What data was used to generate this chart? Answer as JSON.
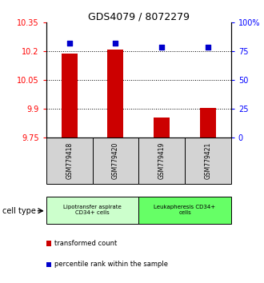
{
  "title": "GDS4079 / 8072279",
  "samples": [
    "GSM779418",
    "GSM779420",
    "GSM779419",
    "GSM779421"
  ],
  "transformed_counts": [
    10.19,
    10.21,
    9.855,
    9.905
  ],
  "percentile_ranks": [
    82,
    82,
    79,
    79
  ],
  "ylim_left": [
    9.75,
    10.35
  ],
  "ylim_right": [
    0,
    100
  ],
  "yticks_left": [
    9.75,
    9.9,
    10.05,
    10.2,
    10.35
  ],
  "ytick_labels_left": [
    "9.75",
    "9.9",
    "10.05",
    "10.2",
    "10.35"
  ],
  "yticks_right": [
    0,
    25,
    50,
    75,
    100
  ],
  "ytick_labels_right": [
    "0",
    "25",
    "50",
    "75",
    "100%"
  ],
  "hlines": [
    9.9,
    10.05,
    10.2
  ],
  "bar_color": "#cc0000",
  "dot_color": "#0000cc",
  "group0_label": "Lipotransfer aspirate\nCD34+ cells",
  "group0_color": "#ccffcc",
  "group1_label": "Leukapheresis CD34+\ncells",
  "group1_color": "#66ff66",
  "cell_type_label": "cell type",
  "legend_red_label": "transformed count",
  "legend_blue_label": "percentile rank within the sample",
  "bar_width": 0.35,
  "dot_size": 22
}
